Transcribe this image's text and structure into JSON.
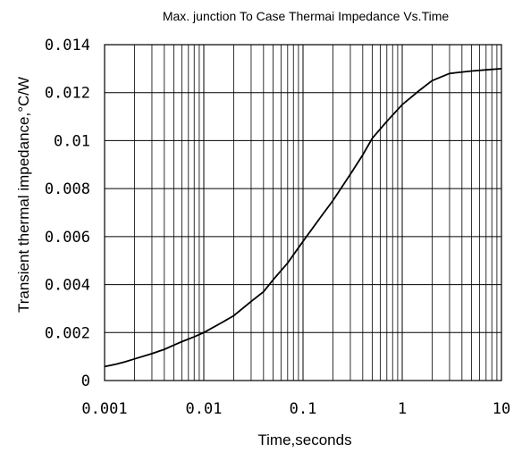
{
  "chart_data": {
    "type": "line",
    "title": "Max. junction To Case Thermai Impedance Vs.Time",
    "xlabel": "Time,seconds",
    "ylabel": "Transient thermal impedance,°C/W",
    "x_scale": "log",
    "xlim": [
      0.001,
      10
    ],
    "ylim": [
      0,
      0.014
    ],
    "grid": true,
    "x_tick_values": [
      0.001,
      0.01,
      0.1,
      1,
      10
    ],
    "x_tick_labels": [
      "0.001",
      "0.01",
      "0.1",
      "1",
      "10"
    ],
    "y_tick_values": [
      0,
      0.002,
      0.004,
      0.006,
      0.008,
      0.01,
      0.012,
      0.014
    ],
    "y_tick_labels": [
      "0",
      "0.002",
      "0.004",
      "0.006",
      "0.008",
      "0.01",
      "0.012",
      "0.014"
    ],
    "series": [
      {
        "x": [
          0.001,
          0.0013,
          0.0016,
          0.002,
          0.003,
          0.004,
          0.005,
          0.006,
          0.008,
          0.01,
          0.015,
          0.02,
          0.03,
          0.04,
          0.05,
          0.07,
          0.1,
          0.15,
          0.2,
          0.3,
          0.4,
          0.5,
          0.7,
          1,
          1.5,
          2,
          3,
          5,
          7,
          10
        ],
        "y": [
          0.00058,
          0.00068,
          0.00078,
          0.0009,
          0.00112,
          0.0013,
          0.00148,
          0.00162,
          0.00182,
          0.002,
          0.0024,
          0.0027,
          0.0033,
          0.0037,
          0.0042,
          0.0049,
          0.0058,
          0.0068,
          0.0075,
          0.0086,
          0.0094,
          0.0101,
          0.0108,
          0.0115,
          0.0121,
          0.0125,
          0.0128,
          0.0129,
          0.01295,
          0.013
        ]
      }
    ]
  }
}
